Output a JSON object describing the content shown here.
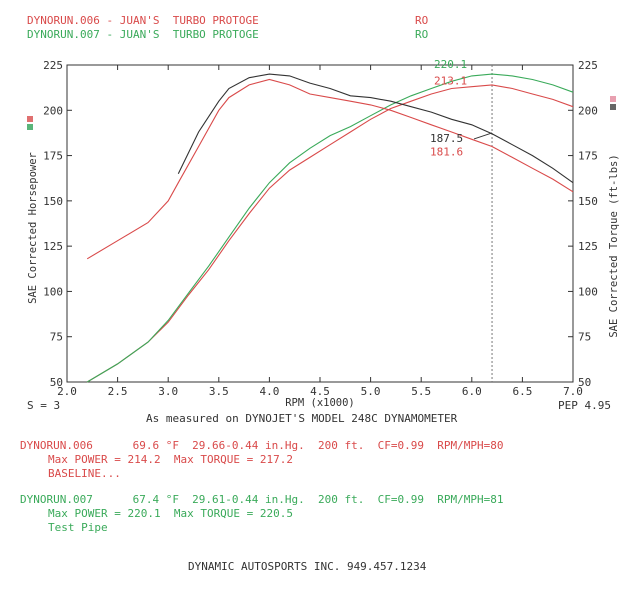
{
  "header": {
    "run1": {
      "name": "DYNORUN.006 - JUAN'S  TURBO PROTOGE",
      "code": "RO"
    },
    "run2": {
      "name": "DYNORUN.007 - JUAN'S  TURBO PROTOGE",
      "code": "RO"
    }
  },
  "axis_footer": {
    "smoothing": "S = 3",
    "pep": "PEP 4.95",
    "measured": "As measured on DYNOJET'S MODEL 248C DYNAMOMETER"
  },
  "runs": [
    {
      "line1": "DYNORUN.006      69.6 °F  29.66-0.44 in.Hg.  200 ft.  CF=0.99  RPM/MPH=80",
      "line2": "Max POWER = 214.2  Max TORQUE = 217.2",
      "line3": "BASELINE..."
    },
    {
      "line1": "DYNORUN.007      67.4 °F  29.61-0.44 in.Hg.  200 ft.  CF=0.99  RPM/MPH=81",
      "line2": "Max POWER = 220.1  Max TORQUE = 220.5",
      "line3": "Test Pipe"
    }
  ],
  "footer": {
    "company": "DYNAMIC AUTOSPORTS INC. 949.457.1234"
  },
  "colors": {
    "run006": "#d94a4a",
    "run007": "#3aaa5a",
    "overlap": "#333333"
  },
  "chart_data": {
    "type": "line",
    "xlabel": "RPM (x1000)",
    "ylabel_left": "SAE Corrected Horsepower",
    "ylabel_right": "SAE Corrected Torque (ft-lbs)",
    "xlim": [
      2.0,
      7.0
    ],
    "ylim": [
      50,
      225
    ],
    "x_ticks": [
      "2.0",
      "2.5",
      "3.0",
      "3.5",
      "4.0",
      "4.5",
      "5.0",
      "5.5",
      "6.0",
      "6.5",
      "7.0"
    ],
    "y_ticks": [
      "50",
      "75",
      "100",
      "125",
      "150",
      "175",
      "200",
      "225"
    ],
    "cursor_x": 6.2,
    "series": [
      {
        "name": "DYNORUN.006",
        "measure": "horsepower",
        "color": "#d94a4a",
        "x": [
          2.2,
          2.5,
          2.8,
          3.0,
          3.2,
          3.4,
          3.6,
          3.8,
          4.0,
          4.2,
          4.4,
          4.6,
          4.8,
          5.0,
          5.2,
          5.4,
          5.6,
          5.8,
          6.0,
          6.2,
          6.4,
          6.6,
          6.8,
          7.0
        ],
        "y": [
          50,
          60,
          72,
          83,
          98,
          112,
          128,
          143,
          157,
          167,
          174,
          181,
          188,
          195,
          201,
          205,
          209,
          212,
          213,
          214,
          212,
          209,
          206,
          202
        ]
      },
      {
        "name": "DYNORUN.007",
        "measure": "horsepower",
        "color": "#3aaa5a",
        "x": [
          2.2,
          2.5,
          2.8,
          3.0,
          3.2,
          3.4,
          3.6,
          3.8,
          4.0,
          4.2,
          4.4,
          4.6,
          4.8,
          5.0,
          5.2,
          5.4,
          5.6,
          5.8,
          6.0,
          6.2,
          6.4,
          6.6,
          6.8,
          7.0
        ],
        "y": [
          50,
          60,
          72,
          84,
          99,
          114,
          130,
          146,
          160,
          171,
          179,
          186,
          191,
          197,
          203,
          208,
          212,
          216,
          219,
          220,
          219,
          217,
          214,
          210
        ]
      },
      {
        "name": "DYNORUN.006",
        "measure": "torque",
        "color": "#d94a4a",
        "x": [
          2.2,
          2.5,
          2.8,
          3.0,
          3.1,
          3.3,
          3.5,
          3.6,
          3.8,
          4.0,
          4.2,
          4.4,
          4.6,
          4.8,
          5.0,
          5.2,
          5.4,
          5.6,
          5.8,
          6.0,
          6.2,
          6.4,
          6.6,
          6.8,
          7.0
        ],
        "y": [
          118,
          128,
          138,
          150,
          160,
          180,
          200,
          207,
          214,
          217,
          214,
          209,
          207,
          205,
          203,
          200,
          196,
          192,
          188,
          184,
          180,
          174,
          168,
          162,
          155
        ]
      },
      {
        "name": "DYNORUN.007",
        "measure": "torque",
        "color": "#333333",
        "x": [
          3.1,
          3.3,
          3.5,
          3.6,
          3.8,
          4.0,
          4.2,
          4.4,
          4.6,
          4.8,
          5.0,
          5.2,
          5.4,
          5.6,
          5.8,
          6.0,
          6.2,
          6.4,
          6.6,
          6.8,
          7.0
        ],
        "y": [
          165,
          188,
          205,
          212,
          218,
          220,
          219,
          215,
          212,
          208,
          207,
          205,
          202,
          199,
          195,
          192,
          187,
          181,
          175,
          168,
          160
        ]
      }
    ],
    "data_labels": [
      {
        "text": "220.1",
        "x": 6.2,
        "y": 220.1,
        "color": "#3aaa5a"
      },
      {
        "text": "213.1",
        "x": 6.2,
        "y": 213.1,
        "color": "#d94a4a"
      },
      {
        "text": "187.5",
        "x": 6.2,
        "y": 187.5,
        "color": "#333333"
      },
      {
        "text": "181.6",
        "x": 6.2,
        "y": 181.6,
        "color": "#d94a4a"
      }
    ]
  }
}
